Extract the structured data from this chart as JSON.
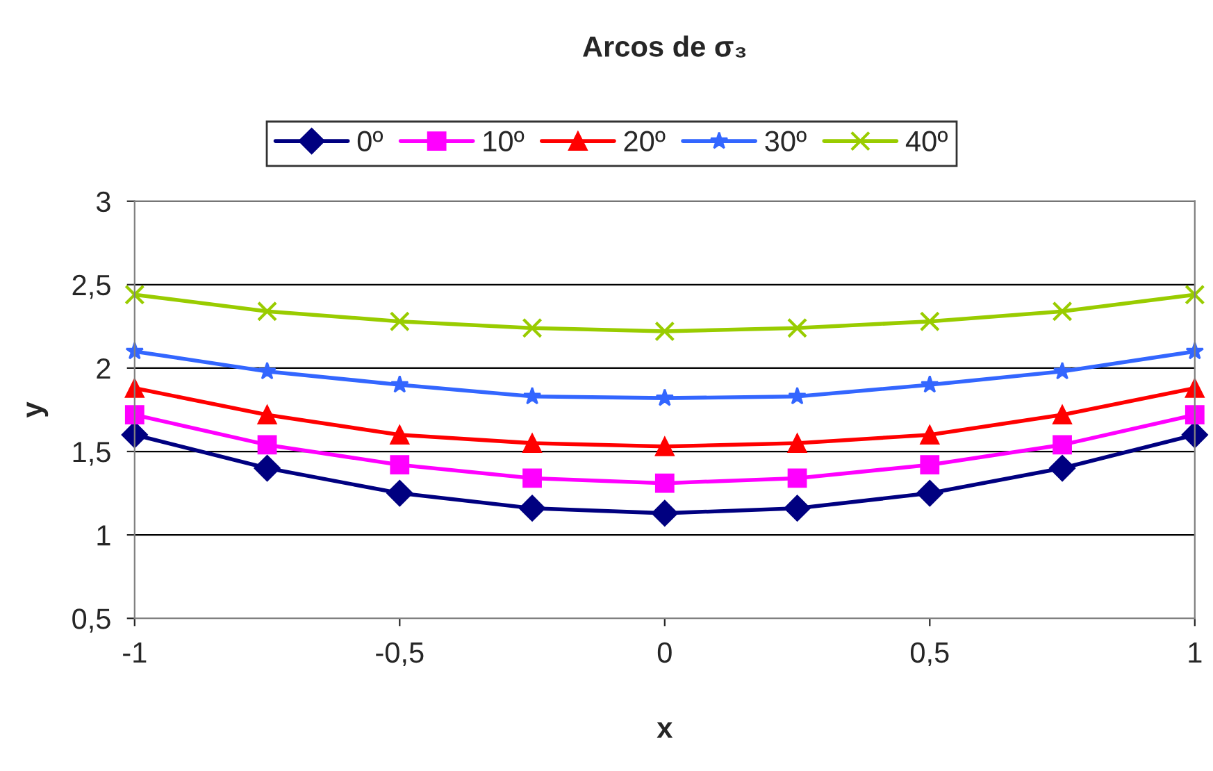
{
  "chart_data": {
    "type": "line",
    "title": "Arcos de σ₃",
    "xlabel": "x",
    "ylabel": "y",
    "x": [
      -1,
      -0.75,
      -0.5,
      -0.25,
      0,
      0.25,
      0.5,
      0.75,
      1
    ],
    "series": [
      {
        "name": "0º",
        "color": "#000080",
        "marker": "diamond",
        "values": [
          1.6,
          1.4,
          1.25,
          1.16,
          1.13,
          1.16,
          1.25,
          1.4,
          1.6
        ]
      },
      {
        "name": "10º",
        "color": "#ff00ff",
        "marker": "square",
        "values": [
          1.72,
          1.54,
          1.42,
          1.34,
          1.31,
          1.34,
          1.42,
          1.54,
          1.72
        ]
      },
      {
        "name": "20º",
        "color": "#ff0000",
        "marker": "triangle",
        "values": [
          1.88,
          1.72,
          1.6,
          1.55,
          1.53,
          1.55,
          1.6,
          1.72,
          1.88
        ]
      },
      {
        "name": "30º",
        "color": "#3366ff",
        "marker": "star",
        "values": [
          2.1,
          1.98,
          1.9,
          1.83,
          1.82,
          1.83,
          1.9,
          1.98,
          2.1
        ]
      },
      {
        "name": "40º",
        "color": "#99cc00",
        "marker": "cross",
        "values": [
          2.44,
          2.34,
          2.28,
          2.24,
          2.22,
          2.24,
          2.28,
          2.34,
          2.44
        ]
      }
    ],
    "xlim": [
      -1,
      1
    ],
    "xticks": [
      {
        "value": -1,
        "label": "-1"
      },
      {
        "value": -0.5,
        "label": "-0,5"
      },
      {
        "value": 0,
        "label": "0"
      },
      {
        "value": 0.5,
        "label": "0,5"
      },
      {
        "value": 1,
        "label": "1"
      }
    ],
    "ylim": [
      0.5,
      3
    ],
    "yticks": [
      {
        "value": 0.5,
        "label": "0,5"
      },
      {
        "value": 1,
        "label": "1"
      },
      {
        "value": 1.5,
        "label": "1,5"
      },
      {
        "value": 2,
        "label": "2"
      },
      {
        "value": 2.5,
        "label": "2,5"
      },
      {
        "value": 3,
        "label": "3"
      }
    ],
    "grid": "y",
    "legend": "top",
    "line_style": "solid"
  }
}
